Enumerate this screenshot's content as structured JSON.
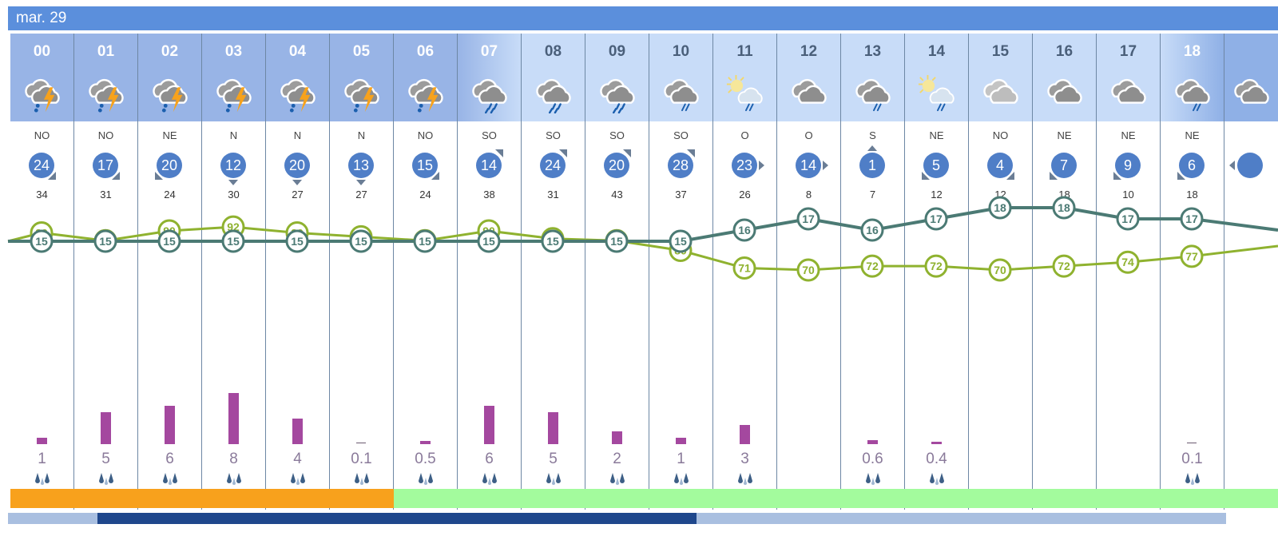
{
  "header": {
    "date": "mar. 29"
  },
  "colors": {
    "date_bar": "#5b8fdc",
    "night_header": "#98b4e6",
    "day_header": "#c8dcf8",
    "wind_circle": "#4f7ec7",
    "temp_line": "#4b7a74",
    "humidity_line": "#8fb22f",
    "precip_bar": "#a4489f",
    "hazard_orange": "#f8a11c",
    "hazard_green": "#a3fb9d",
    "scroll_track": "#a9bfe0",
    "scroll_thumb": "#1f478c"
  },
  "hours": [
    {
      "hour": "00",
      "period": "night",
      "icon": "storm-cloud-icon",
      "wind_dir": "NO",
      "wind_speed": "24",
      "arrow": "se",
      "gust": "34",
      "temp": 15,
      "humidity": 89,
      "precip": "1",
      "precip_mm": 1,
      "hazard": "orange"
    },
    {
      "hour": "01",
      "period": "night",
      "icon": "storm-cloud-icon",
      "wind_dir": "NO",
      "wind_speed": "17",
      "arrow": "se",
      "gust": "31",
      "temp": 15,
      "humidity": 85,
      "precip": "5",
      "precip_mm": 5,
      "hazard": "orange"
    },
    {
      "hour": "02",
      "period": "night",
      "icon": "storm-cloud-icon",
      "wind_dir": "NE",
      "wind_speed": "20",
      "arrow": "sw",
      "gust": "24",
      "temp": 15,
      "humidity": 90,
      "precip": "6",
      "precip_mm": 6,
      "hazard": "orange"
    },
    {
      "hour": "03",
      "period": "night",
      "icon": "storm-cloud-icon",
      "wind_dir": "N",
      "wind_speed": "12",
      "arrow": "s",
      "gust": "30",
      "temp": 15,
      "humidity": 92,
      "precip": "8",
      "precip_mm": 8,
      "hazard": "orange"
    },
    {
      "hour": "04",
      "period": "night",
      "icon": "storm-cloud-icon",
      "wind_dir": "N",
      "wind_speed": "20",
      "arrow": "s",
      "gust": "27",
      "temp": 15,
      "humidity": 89,
      "precip": "4",
      "precip_mm": 4,
      "hazard": "orange"
    },
    {
      "hour": "05",
      "period": "night",
      "icon": "storm-cloud-icon",
      "wind_dir": "N",
      "wind_speed": "13",
      "arrow": "s",
      "gust": "27",
      "temp": 15,
      "humidity": 87,
      "precip": "0.1",
      "precip_mm": 0.1,
      "hazard": "orange"
    },
    {
      "hour": "06",
      "period": "night",
      "icon": "storm-cloud-icon",
      "wind_dir": "NO",
      "wind_speed": "15",
      "arrow": "se",
      "gust": "24",
      "temp": 15,
      "humidity": 85,
      "precip": "0.5",
      "precip_mm": 0.5,
      "hazard": "green"
    },
    {
      "hour": "07",
      "period": "dawn",
      "icon": "rain-cloud-icon",
      "wind_dir": "SO",
      "wind_speed": "14",
      "arrow": "ne",
      "gust": "38",
      "temp": 15,
      "humidity": 90,
      "precip": "6",
      "precip_mm": 6,
      "hazard": "green"
    },
    {
      "hour": "08",
      "period": "day",
      "icon": "rain-cloud-icon",
      "wind_dir": "SO",
      "wind_speed": "24",
      "arrow": "ne",
      "gust": "31",
      "temp": 15,
      "humidity": 86,
      "precip": "5",
      "precip_mm": 5,
      "hazard": "green"
    },
    {
      "hour": "09",
      "period": "day",
      "icon": "rain-cloud-icon",
      "wind_dir": "SO",
      "wind_speed": "20",
      "arrow": "ne",
      "gust": "43",
      "temp": 15,
      "humidity": 85,
      "precip": "2",
      "precip_mm": 2,
      "hazard": "green"
    },
    {
      "hour": "10",
      "period": "day",
      "icon": "drizzle-cloud-icon",
      "wind_dir": "SO",
      "wind_speed": "28",
      "arrow": "ne",
      "gust": "37",
      "temp": 15,
      "humidity": 80,
      "precip": "1",
      "precip_mm": 1,
      "hazard": "green"
    },
    {
      "hour": "11",
      "period": "day",
      "icon": "sun-rain-icon",
      "wind_dir": "O",
      "wind_speed": "23",
      "arrow": "e",
      "gust": "26",
      "temp": 16,
      "humidity": 71,
      "precip": "3",
      "precip_mm": 3,
      "hazard": "green"
    },
    {
      "hour": "12",
      "period": "day",
      "icon": "cloudy-icon",
      "wind_dir": "O",
      "wind_speed": "14",
      "arrow": "e",
      "gust": "8",
      "temp": 17,
      "humidity": 70,
      "precip": "",
      "precip_mm": 0,
      "hazard": "green"
    },
    {
      "hour": "13",
      "period": "day",
      "icon": "drizzle-cloud-icon",
      "wind_dir": "S",
      "wind_speed": "1",
      "arrow": "n",
      "gust": "7",
      "temp": 16,
      "humidity": 72,
      "precip": "0.6",
      "precip_mm": 0.6,
      "hazard": "green"
    },
    {
      "hour": "14",
      "period": "day",
      "icon": "sun-rain-icon",
      "wind_dir": "NE",
      "wind_speed": "5",
      "arrow": "sw",
      "gust": "12",
      "temp": 17,
      "humidity": 72,
      "precip": "0.4",
      "precip_mm": 0.4,
      "hazard": "green"
    },
    {
      "hour": "15",
      "period": "day",
      "icon": "light-cloud-icon",
      "wind_dir": "NO",
      "wind_speed": "4",
      "arrow": "se",
      "gust": "12",
      "temp": 18,
      "humidity": 70,
      "precip": "",
      "precip_mm": 0,
      "hazard": "green"
    },
    {
      "hour": "16",
      "period": "day",
      "icon": "cloudy-icon",
      "wind_dir": "NE",
      "wind_speed": "7",
      "arrow": "sw",
      "gust": "18",
      "temp": 18,
      "humidity": 72,
      "precip": "",
      "precip_mm": 0,
      "hazard": "green"
    },
    {
      "hour": "17",
      "period": "day",
      "icon": "cloudy-icon",
      "wind_dir": "NE",
      "wind_speed": "9",
      "arrow": "sw",
      "gust": "10",
      "temp": 17,
      "humidity": 74,
      "precip": "",
      "precip_mm": 0,
      "hazard": "green"
    },
    {
      "hour": "18",
      "period": "dusk",
      "icon": "drizzle-cloud-icon",
      "wind_dir": "NE",
      "wind_speed": "6",
      "arrow": "sw",
      "gust": "18",
      "temp": 17,
      "humidity": 77,
      "precip": "0.1",
      "precip_mm": 0.1,
      "hazard": "green"
    }
  ],
  "scrollbar": {
    "thumb_start_pct": 7,
    "thumb_width_pct": 49
  }
}
